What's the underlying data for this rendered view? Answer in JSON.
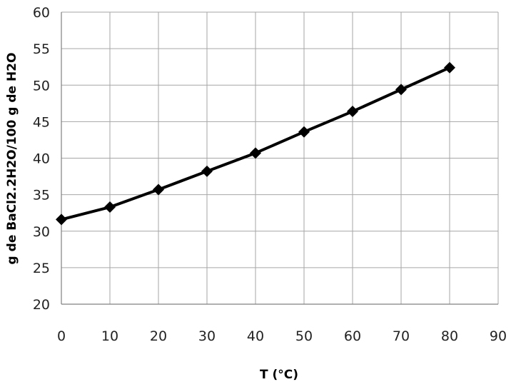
{
  "chart_data": {
    "type": "line",
    "title": "",
    "xlabel": "T (°C)",
    "ylabel": "g de BaCl2.2H2O/100 g de H2O",
    "xlim": [
      0,
      90
    ],
    "ylim": [
      20,
      60
    ],
    "x_ticks": [
      "0",
      "10",
      "20",
      "30",
      "40",
      "50",
      "60",
      "70",
      "80",
      "90"
    ],
    "y_ticks": [
      "20",
      "25",
      "30",
      "35",
      "40",
      "45",
      "50",
      "55",
      "60"
    ],
    "grid": true,
    "legend": "none",
    "series": [
      {
        "x": [
          0,
          10,
          20,
          30,
          40,
          50,
          60,
          70,
          80
        ],
        "y": [
          31.6,
          33.3,
          35.7,
          38.2,
          40.7,
          43.6,
          46.4,
          49.4,
          52.4
        ],
        "color": "#000000",
        "marker": "diamond"
      }
    ]
  }
}
